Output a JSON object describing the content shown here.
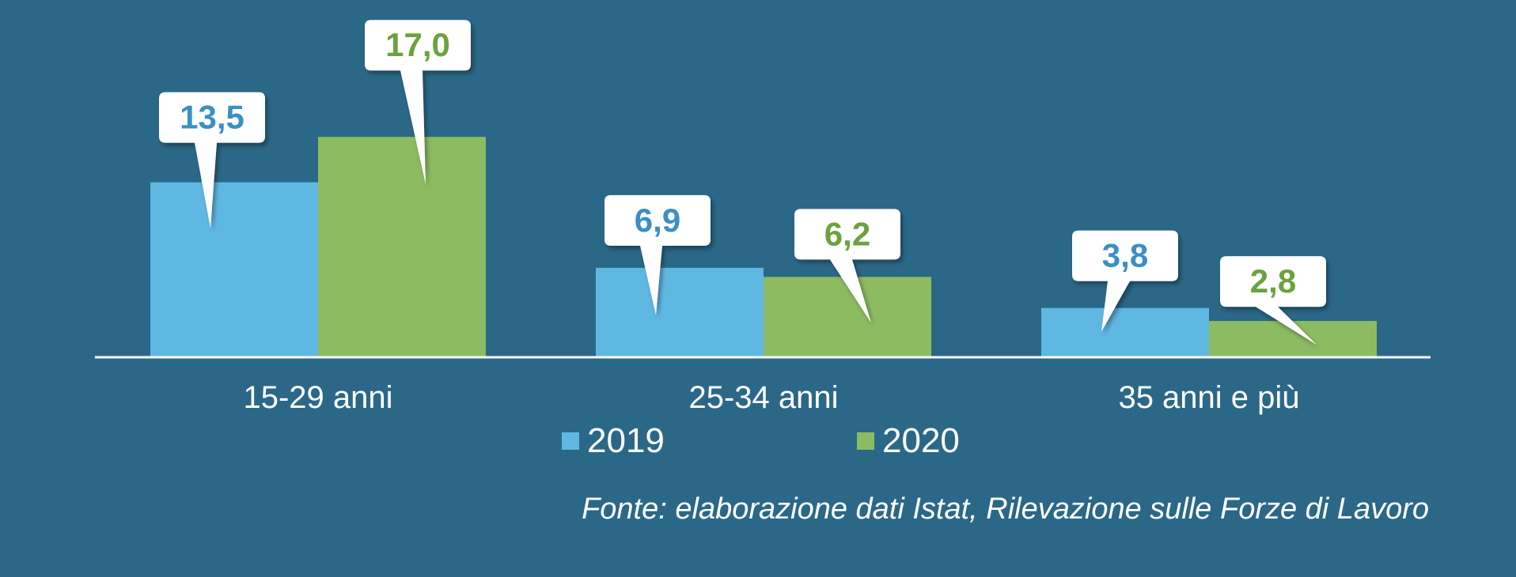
{
  "chart_data": {
    "type": "bar",
    "categories": [
      "15-29 anni",
      "25-34 anni",
      "35 anni e più"
    ],
    "series": [
      {
        "name": "2019",
        "values": [
          13.5,
          6.9,
          3.8
        ],
        "labels": [
          "13,5",
          "6,9",
          "3,8"
        ],
        "color": "#5fb8e2"
      },
      {
        "name": "2020",
        "values": [
          17.0,
          6.2,
          2.8
        ],
        "labels": [
          "17,0",
          "6,2",
          "2,8"
        ],
        "color": "#8dbb62"
      }
    ],
    "ylim": [
      0,
      20
    ],
    "grid": false,
    "legend_position": "bottom-center",
    "source": "Fonte: elaborazione dati Istat, Rilevazione sulle Forze di Lavoro"
  },
  "colors": {
    "background": "#2b6887",
    "label_box": "#ffffff",
    "label_2019_text": "#3a8fc4",
    "label_2020_text": "#6aa33e"
  }
}
